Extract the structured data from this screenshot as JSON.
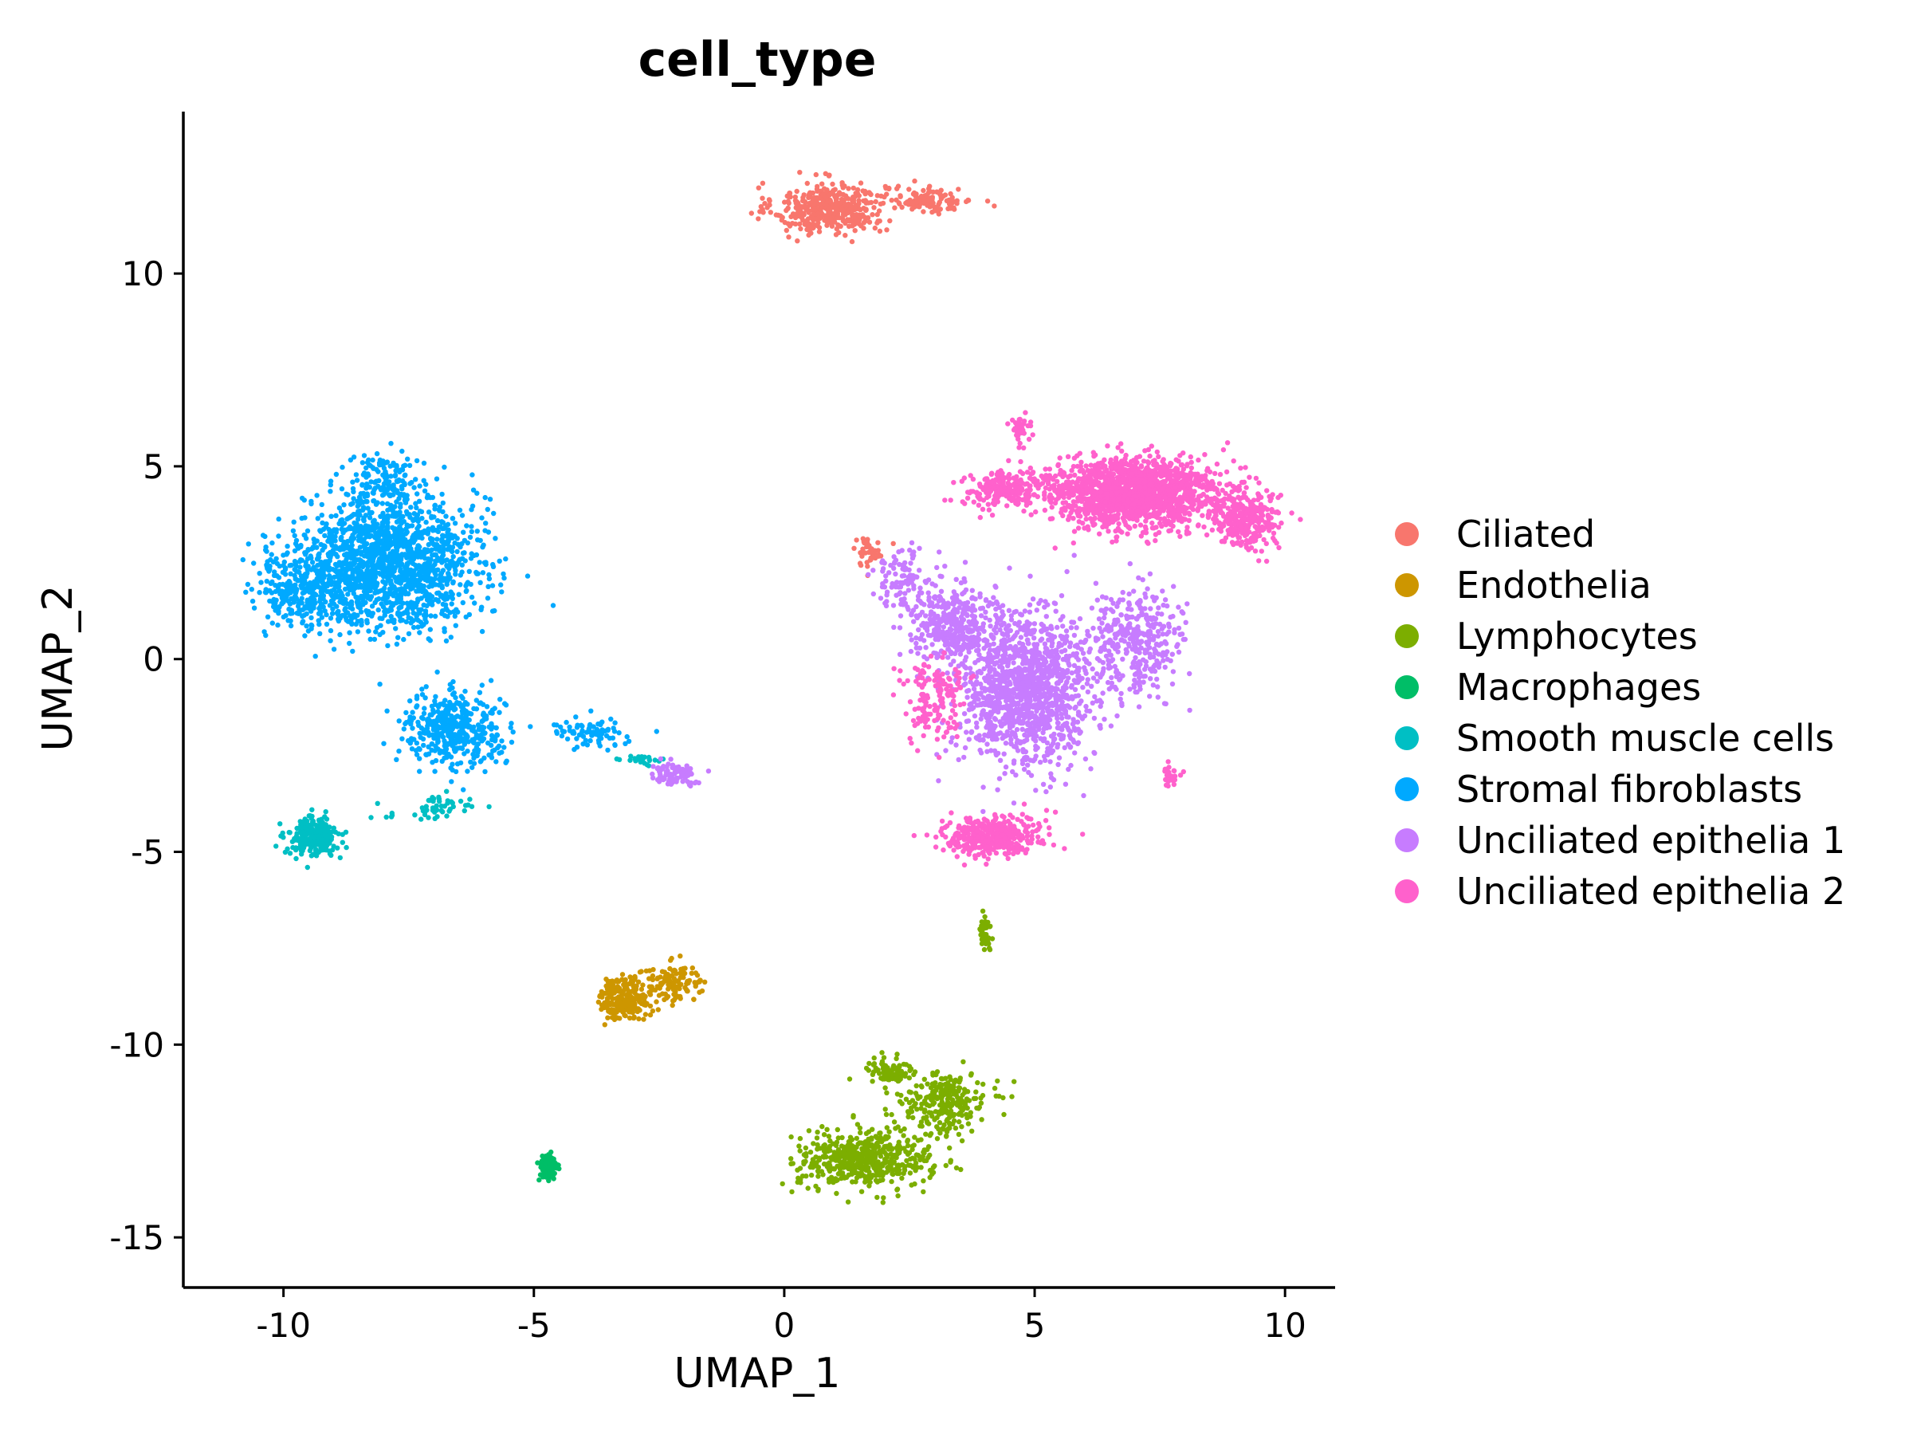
{
  "chart_data": {
    "type": "scatter",
    "title": "cell_type",
    "xlabel": "UMAP_1",
    "ylabel": "UMAP_2",
    "xlim": [
      -12,
      11
    ],
    "ylim": [
      -16.3,
      14.2
    ],
    "x_ticks": [
      -10,
      -5,
      0,
      5,
      10
    ],
    "y_ticks": [
      -15,
      -10,
      -5,
      0,
      5,
      10
    ],
    "x_tick_labels": [
      "-10",
      "-5",
      "0",
      "5",
      "10"
    ],
    "y_tick_labels": [
      "-15",
      "-10",
      "-5",
      "0",
      "5",
      "10"
    ],
    "grid": false,
    "legend_position": "right",
    "series": [
      {
        "name": "Ciliated",
        "color": "#F8766D",
        "clusters": [
          {
            "center": [
              0.9,
              11.7
            ],
            "spread": [
              1.0,
              0.6
            ],
            "n": 420
          },
          {
            "center": [
              2.9,
              11.9
            ],
            "spread": [
              0.8,
              0.3
            ],
            "n": 120
          },
          {
            "center": [
              1.7,
              2.8
            ],
            "spread": [
              0.3,
              0.35
            ],
            "n": 40
          }
        ]
      },
      {
        "name": "Endothelia",
        "color": "#CD9600",
        "clusters": [
          {
            "center": [
              -3.2,
              -8.8
            ],
            "spread": [
              0.45,
              0.5
            ],
            "n": 220
          },
          {
            "center": [
              -2.2,
              -8.4
            ],
            "spread": [
              0.6,
              0.45
            ],
            "n": 120
          }
        ]
      },
      {
        "name": "Lymphocytes",
        "color": "#7CAE00",
        "clusters": [
          {
            "center": [
              1.6,
              -13.0
            ],
            "spread": [
              1.2,
              0.65
            ],
            "n": 520
          },
          {
            "center": [
              3.2,
              -11.5
            ],
            "spread": [
              0.8,
              0.7
            ],
            "n": 260
          },
          {
            "center": [
              2.1,
              -10.7
            ],
            "spread": [
              0.45,
              0.35
            ],
            "n": 80
          },
          {
            "center": [
              4.0,
              -7.1
            ],
            "spread": [
              0.12,
              0.5
            ],
            "n": 40
          }
        ]
      },
      {
        "name": "Macrophages",
        "color": "#00BE67",
        "clusters": [
          {
            "center": [
              -4.7,
              -13.2
            ],
            "spread": [
              0.18,
              0.35
            ],
            "n": 110
          }
        ]
      },
      {
        "name": "Smooth muscle cells",
        "color": "#00BFC4",
        "clusters": [
          {
            "center": [
              -9.4,
              -4.6
            ],
            "spread": [
              0.45,
              0.45
            ],
            "n": 240
          },
          {
            "center": [
              -7.0,
              -3.9
            ],
            "spread": [
              0.9,
              0.3
            ],
            "n": 50
          },
          {
            "center": [
              -2.8,
              -2.6
            ],
            "spread": [
              0.4,
              0.15
            ],
            "n": 25
          }
        ]
      },
      {
        "name": "Stromal fibroblasts",
        "color": "#00A9FF",
        "clusters": [
          {
            "center": [
              -7.9,
              2.5
            ],
            "spread": [
              1.6,
              1.5
            ],
            "n": 1600
          },
          {
            "center": [
              -9.6,
              1.8
            ],
            "spread": [
              0.9,
              0.8
            ],
            "n": 300
          },
          {
            "center": [
              -6.6,
              -1.8
            ],
            "spread": [
              0.9,
              0.85
            ],
            "n": 420
          },
          {
            "center": [
              -8.0,
              4.5
            ],
            "spread": [
              0.6,
              0.8
            ],
            "n": 150
          },
          {
            "center": [
              -3.8,
              -1.9
            ],
            "spread": [
              0.8,
              0.35
            ],
            "n": 80
          }
        ]
      },
      {
        "name": "Unciliated epithelia 1",
        "color": "#C77CFF",
        "clusters": [
          {
            "center": [
              4.8,
              -0.8
            ],
            "spread": [
              1.2,
              1.8
            ],
            "n": 1300
          },
          {
            "center": [
              3.3,
              0.9
            ],
            "spread": [
              0.8,
              0.9
            ],
            "n": 350
          },
          {
            "center": [
              7.0,
              0.5
            ],
            "spread": [
              0.9,
              1.2
            ],
            "n": 350
          },
          {
            "center": [
              2.3,
              2.2
            ],
            "spread": [
              0.55,
              0.7
            ],
            "n": 90
          },
          {
            "center": [
              -2.2,
              -3.0
            ],
            "spread": [
              0.4,
              0.25
            ],
            "n": 90
          }
        ]
      },
      {
        "name": "Unciliated epithelia 2",
        "color": "#FF61CC",
        "clusters": [
          {
            "center": [
              7.0,
              4.3
            ],
            "spread": [
              1.6,
              0.8
            ],
            "n": 1500
          },
          {
            "center": [
              9.2,
              3.6
            ],
            "spread": [
              0.6,
              0.7
            ],
            "n": 280
          },
          {
            "center": [
              4.4,
              4.4
            ],
            "spread": [
              0.8,
              0.45
            ],
            "n": 220
          },
          {
            "center": [
              4.1,
              -4.6
            ],
            "spread": [
              0.9,
              0.5
            ],
            "n": 380
          },
          {
            "center": [
              4.7,
              6.0
            ],
            "spread": [
              0.2,
              0.35
            ],
            "n": 40
          },
          {
            "center": [
              3.0,
              -1.0
            ],
            "spread": [
              0.6,
              1.0
            ],
            "n": 150
          },
          {
            "center": [
              7.7,
              -3.0
            ],
            "spread": [
              0.15,
              0.3
            ],
            "n": 25
          }
        ]
      }
    ]
  }
}
